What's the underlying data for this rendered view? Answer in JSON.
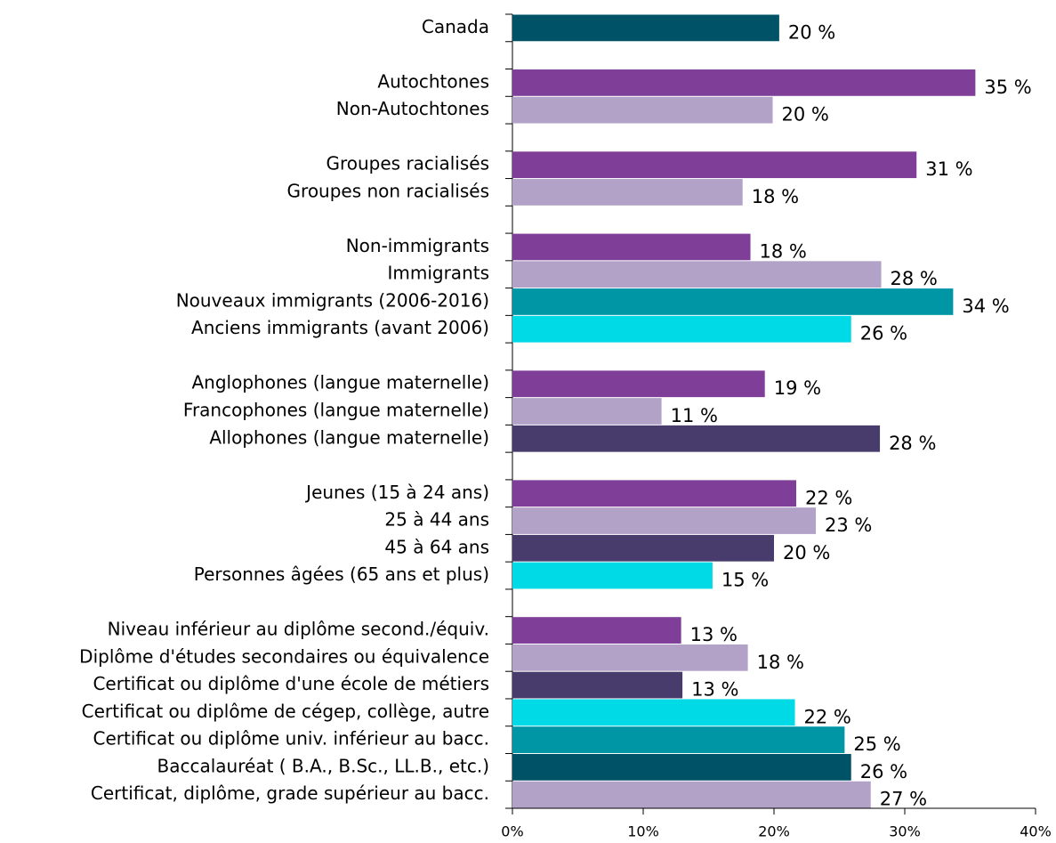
{
  "chart_data": {
    "type": "barh",
    "categories": [
      "Canada",
      null,
      "Autochtones",
      "Non-Autochtones",
      null,
      "Groupes racialisés",
      "Groupes non racialisés",
      null,
      "Non-immigrants",
      "Immigrants",
      "Nouveaux immigrants (2006-2016)",
      "Anciens immigrants (avant 2006)",
      null,
      "Anglophones (langue maternelle)",
      "Francophones (langue maternelle)",
      "Allophones (langue maternelle)",
      null,
      "Jeunes (15 à 24 ans)",
      "25 à 44 ans",
      "45 à 64 ans",
      "Personnes âgées (65 ans et plus)",
      null,
      "Niveau inférieur au diplôme second./équiv.",
      "Diplôme d'études secondaires ou équivalence",
      "Certificat ou diplôme d'une école de métiers",
      "Certificat ou diplôme de cégep, collège, autre",
      "Certificat ou diplôme univ. inférieur au bacc.",
      "Baccalauréat ( B.A., B.Sc., LL.B., etc.)",
      "Certificat, diplôme, grade supérieur au bacc."
    ],
    "values": [
      20.4,
      null,
      35.4,
      19.9,
      null,
      30.9,
      17.6,
      null,
      18.2,
      28.2,
      33.7,
      25.9,
      null,
      19.3,
      11.4,
      28.1,
      null,
      21.7,
      23.2,
      20.0,
      15.3,
      null,
      12.9,
      18.0,
      13.0,
      21.6,
      25.4,
      25.9,
      27.4
    ],
    "value_labels": [
      "20 %",
      null,
      "35 %",
      "20 %",
      null,
      "31 %",
      "18 %",
      null,
      "18 %",
      "28 %",
      "34 %",
      "26 %",
      null,
      "19 %",
      "11 %",
      "28 %",
      null,
      "22 %",
      "23 %",
      "20 %",
      "15 %",
      null,
      "13 %",
      "18 %",
      "13 %",
      "22 %",
      "25 %",
      "26 %",
      "27 %"
    ],
    "colors": [
      "#005266",
      null,
      "#7f3f98",
      "#b3a2c8",
      null,
      "#7f3f98",
      "#b3a2c8",
      null,
      "#7f3f98",
      "#b3a2c8",
      "#0096a6",
      "#00d9e6",
      null,
      "#7f3f98",
      "#b3a2c8",
      "#473c6b",
      null,
      "#7f3f98",
      "#b3a2c8",
      "#473c6b",
      "#00d9e6",
      null,
      "#7f3f98",
      "#b3a2c8",
      "#473c6b",
      "#00d9e6",
      "#0096a6",
      "#005266",
      "#b3a2c8"
    ],
    "xlim": [
      0,
      40
    ],
    "xticks": [
      {
        "value": 0,
        "label": "0%"
      },
      {
        "value": 10,
        "label": "10%"
      },
      {
        "value": 20,
        "label": "20%"
      },
      {
        "value": 30,
        "label": "30%"
      },
      {
        "value": 40,
        "label": "40%"
      }
    ]
  }
}
